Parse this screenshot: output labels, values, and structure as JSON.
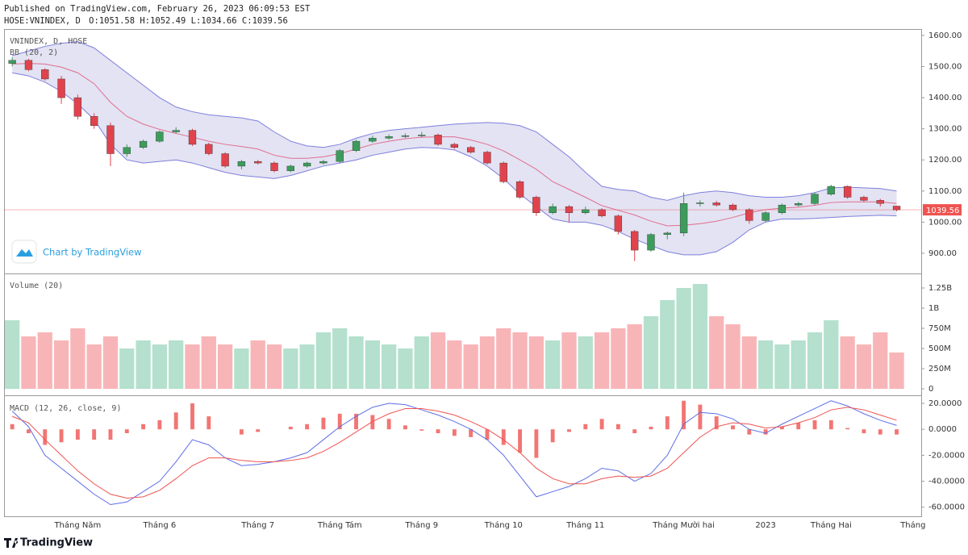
{
  "header": {
    "published": "Published on TradingView.com, February 26, 2023 06:09:53 EST",
    "symbol": "HOSE:VNINDEX, D",
    "ohlc_labels": [
      "O:",
      "H:",
      "L:",
      "C:"
    ],
    "watermark": "Chart by TradingView",
    "brand": "TradingView"
  },
  "chart_data": [
    {
      "type": "candlestick",
      "title": "VNINDEX, D, HOSE",
      "subtitle": "BB (20, 2)",
      "categories": [
        null,
        null,
        null,
        null,
        "Tháng Năm",
        null,
        null,
        null,
        null,
        "Tháng 6",
        null,
        null,
        null,
        null,
        null,
        "Tháng 7",
        null,
        null,
        null,
        null,
        "Tháng Tám",
        null,
        null,
        null,
        null,
        "Tháng 9",
        null,
        null,
        null,
        null,
        "Tháng 10",
        null,
        null,
        null,
        null,
        "Tháng 11",
        null,
        null,
        null,
        null,
        null,
        "Tháng Mười hai",
        null,
        null,
        null,
        null,
        "2023",
        null,
        null,
        null,
        "Tháng Hai",
        null,
        null,
        null,
        null,
        "Tháng"
      ],
      "open": [
        1510,
        1520,
        1490,
        1460,
        1400,
        1340,
        1310,
        1220,
        1240,
        1260,
        1290,
        1295,
        1250,
        1220,
        1180,
        1195,
        1190,
        1165,
        1180,
        1190,
        1195,
        1230,
        1260,
        1270,
        1275,
        1278,
        1280,
        1250,
        1240,
        1225,
        1190,
        1130,
        1080,
        1030,
        1050,
        1030,
        1040,
        1020,
        970,
        910,
        960,
        965,
        1060,
        1062,
        1055,
        1040,
        1005,
        1030,
        1055,
        1060,
        1090,
        1115,
        1080,
        1070,
        1051.58,
        null
      ],
      "high": [
        1530,
        1525,
        1495,
        1470,
        1410,
        1350,
        1320,
        1250,
        1265,
        1295,
        1305,
        1300,
        1255,
        1225,
        1200,
        1200,
        1195,
        1185,
        1195,
        1200,
        1235,
        1265,
        1278,
        1282,
        1285,
        1290,
        1285,
        1255,
        1245,
        1230,
        1195,
        1135,
        1085,
        1060,
        1055,
        1050,
        1045,
        1025,
        975,
        965,
        970,
        1095,
        1070,
        1068,
        1060,
        1045,
        1035,
        1060,
        1065,
        1095,
        1120,
        1118,
        1085,
        1075,
        1052.49,
        null
      ],
      "low": [
        1500,
        1485,
        1455,
        1380,
        1330,
        1300,
        1180,
        1210,
        1235,
        1255,
        1285,
        1245,
        1215,
        1175,
        1170,
        1185,
        1160,
        1160,
        1175,
        1185,
        1190,
        1225,
        1255,
        1265,
        1270,
        1272,
        1245,
        1235,
        1220,
        1185,
        1125,
        1075,
        1020,
        1025,
        1000,
        1025,
        1015,
        960,
        875,
        905,
        945,
        955,
        1050,
        1050,
        1035,
        995,
        1000,
        1025,
        1050,
        1055,
        1085,
        1075,
        1065,
        1050,
        1034.66,
        null
      ],
      "close": [
        1520,
        1490,
        1460,
        1400,
        1340,
        1310,
        1220,
        1240,
        1260,
        1290,
        1295,
        1250,
        1220,
        1180,
        1195,
        1190,
        1165,
        1180,
        1190,
        1195,
        1230,
        1260,
        1270,
        1275,
        1278,
        1280,
        1250,
        1240,
        1225,
        1190,
        1130,
        1080,
        1030,
        1050,
        1030,
        1040,
        1020,
        970,
        910,
        960,
        965,
        1060,
        1062,
        1055,
        1040,
        1005,
        1030,
        1055,
        1060,
        1090,
        1115,
        1080,
        1070,
        1060,
        1039.56,
        null
      ],
      "up_color": "#3d9c5c",
      "down_color": "#e0434d",
      "bands": {
        "upper": [
          1535,
          1550,
          1565,
          1575,
          1580,
          1560,
          1520,
          1480,
          1440,
          1400,
          1370,
          1355,
          1345,
          1340,
          1335,
          1325,
          1290,
          1260,
          1245,
          1240,
          1250,
          1270,
          1285,
          1295,
          1300,
          1305,
          1310,
          1315,
          1318,
          1320,
          1318,
          1310,
          1290,
          1250,
          1210,
          1160,
          1115,
          1105,
          1100,
          1080,
          1070,
          1085,
          1095,
          1100,
          1095,
          1085,
          1080,
          1080,
          1085,
          1095,
          1110,
          1112,
          1110,
          1108,
          1100,
          null
        ],
        "middle": [
          1508,
          1510,
          1508,
          1498,
          1480,
          1445,
          1385,
          1340,
          1315,
          1298,
          1285,
          1273,
          1260,
          1250,
          1243,
          1235,
          1215,
          1205,
          1205,
          1210,
          1220,
          1235,
          1250,
          1260,
          1268,
          1273,
          1274,
          1274,
          1264,
          1250,
          1229,
          1200,
          1170,
          1130,
          1105,
          1080,
          1053,
          1038,
          1023,
          1003,
          988,
          990,
          995,
          1003,
          1015,
          1030,
          1040,
          1045,
          1048,
          1054,
          1063,
          1065,
          1065,
          1065,
          1060,
          null
        ],
        "lower": [
          1480,
          1470,
          1450,
          1420,
          1380,
          1330,
          1250,
          1200,
          1190,
          1195,
          1200,
          1190,
          1175,
          1160,
          1150,
          1145,
          1140,
          1150,
          1165,
          1180,
          1190,
          1200,
          1215,
          1225,
          1235,
          1240,
          1238,
          1232,
          1210,
          1180,
          1140,
          1090,
          1050,
          1010,
          1000,
          1000,
          990,
          970,
          945,
          925,
          905,
          895,
          895,
          905,
          935,
          975,
          1000,
          1010,
          1010,
          1012,
          1015,
          1018,
          1020,
          1022,
          1020,
          null
        ],
        "line_color": "#7d7fdc",
        "middle_color": "#e26d8e",
        "fill": "#dcdcf0"
      },
      "last_price_color": "#ef5350",
      "ylim": [
        835,
        1618
      ],
      "yticks": [
        {
          "value": 900,
          "label": "900.00"
        },
        {
          "value": 1000,
          "label": "1000.00"
        },
        {
          "value": 1100,
          "label": "1100.00"
        },
        {
          "value": 1200,
          "label": "1200.00"
        },
        {
          "value": 1300,
          "label": "1300.00"
        },
        {
          "value": 1400,
          "label": "1400.00"
        },
        {
          "value": 1500,
          "label": "1500.00"
        },
        {
          "value": 1600,
          "label": "1600.00"
        }
      ]
    },
    {
      "type": "bar",
      "title": "Volume (20)",
      "values": [
        850000000,
        650000000,
        700000000,
        600000000,
        750000000,
        550000000,
        650000000,
        500000000,
        600000000,
        550000000,
        600000000,
        550000000,
        650000000,
        550000000,
        500000000,
        600000000,
        550000000,
        500000000,
        550000000,
        700000000,
        750000000,
        650000000,
        600000000,
        550000000,
        500000000,
        650000000,
        700000000,
        600000000,
        550000000,
        650000000,
        750000000,
        700000000,
        650000000,
        600000000,
        700000000,
        650000000,
        700000000,
        750000000,
        800000000,
        900000000,
        1100000000,
        1250000000,
        1300000000,
        900000000,
        800000000,
        650000000,
        600000000,
        550000000,
        600000000,
        700000000,
        850000000,
        650000000,
        550000000,
        700000000,
        450000000,
        null
      ],
      "up_color": "#b4e0cd",
      "down_color": "#f8b5b8",
      "ylim": [
        -80000000,
        1420000000
      ],
      "yticks": [
        0,
        {
          "value": 250000000,
          "label": "250M"
        },
        {
          "value": 500000000,
          "label": "500M"
        },
        {
          "value": 750000000,
          "label": "750M"
        },
        {
          "value": 1000000000,
          "label": "1B"
        },
        {
          "value": 1250000000,
          "label": "1.25B"
        }
      ]
    },
    {
      "type": "line",
      "title": "MACD (12, 26, close, 9)",
      "histogram": {
        "color": "#ef5350",
        "values": [
          4,
          -3,
          -12,
          -10,
          -8,
          -8,
          -8,
          -3,
          4,
          7,
          13,
          20,
          10,
          0,
          -4,
          -2,
          0,
          2,
          4,
          9,
          12,
          12,
          11,
          8,
          3,
          -1,
          -3,
          -5,
          -6,
          -8,
          -12,
          -18,
          -22,
          -10,
          -2,
          4,
          8,
          4,
          -3,
          2,
          10,
          22,
          19,
          10,
          3,
          -4,
          -4,
          2,
          5,
          7,
          7,
          1,
          -3,
          -4,
          -4,
          null
        ]
      },
      "series": [
        {
          "color": "#5d6ee6",
          "values": [
            14,
            2,
            -20,
            -30,
            -40,
            -50,
            -58,
            -56,
            -48,
            -40,
            -25,
            -8,
            -12,
            -22,
            -28,
            -27,
            -25,
            -22,
            -18,
            -8,
            2,
            10,
            17,
            20,
            19,
            15,
            11,
            6,
            0,
            -8,
            -20,
            -36,
            -52,
            -48,
            -44,
            -38,
            -30,
            -32,
            -40,
            -34,
            -20,
            4,
            13,
            12,
            8,
            0,
            -3,
            4,
            10,
            16,
            22,
            18,
            12,
            7,
            3,
            null
          ]
        },
        {
          "color": "#ef5350",
          "values": [
            10,
            5,
            -8,
            -20,
            -32,
            -42,
            -50,
            -53,
            -52,
            -47,
            -38,
            -28,
            -22,
            -22,
            -24,
            -25,
            -25,
            -24,
            -22,
            -17,
            -10,
            -2,
            6,
            12,
            16,
            16,
            14,
            11,
            6,
            0,
            -8,
            -18,
            -30,
            -38,
            -42,
            -42,
            -38,
            -36,
            -37,
            -36,
            -30,
            -18,
            -6,
            2,
            5,
            4,
            1,
            2,
            5,
            9,
            15,
            17,
            15,
            11,
            7,
            null
          ]
        }
      ],
      "ylim": [
        -67,
        25.6
      ],
      "yticks": [
        {
          "value": 20,
          "label": "20.0000"
        },
        {
          "value": 0,
          "label": "0.0000"
        },
        {
          "value": -20,
          "label": "-20.0000"
        },
        {
          "value": -40,
          "label": "-40.0000"
        },
        {
          "value": -60,
          "label": "-60.0000"
        }
      ]
    }
  ]
}
